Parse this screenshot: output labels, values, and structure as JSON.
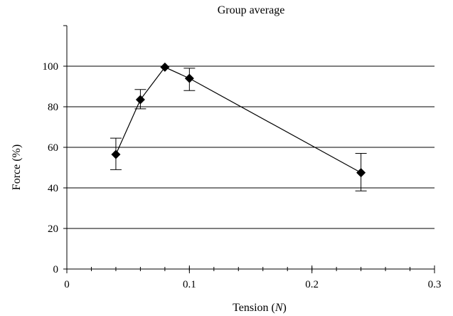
{
  "chart_data": {
    "type": "line",
    "title": "Group average",
    "xlabel_prefix": "Tension (",
    "xlabel_var": "N",
    "xlabel_suffix": ")",
    "ylabel": "Force (%)",
    "xlim": [
      0,
      0.3
    ],
    "ylim": [
      0,
      120
    ],
    "x_ticks": [
      0,
      0.1,
      0.2,
      0.3
    ],
    "x_tick_labels": [
      "0",
      "0.1",
      "0.2",
      "0.3"
    ],
    "x_minor_step": 0.02,
    "y_ticks": [
      0,
      20,
      40,
      60,
      80,
      100
    ],
    "y_tick_labels": [
      "0",
      "20",
      "40",
      "60",
      "80",
      "100"
    ],
    "grid": "horizontal",
    "series": [
      {
        "marker": "diamond",
        "color": "#000000",
        "points": [
          {
            "x": 0.04,
            "y": 56.5,
            "err_low": 49,
            "err_high": 64.5
          },
          {
            "x": 0.06,
            "y": 83.5,
            "err_low": 79,
            "err_high": 88.5
          },
          {
            "x": 0.08,
            "y": 99.5,
            "err_low": 99.5,
            "err_high": 99.5
          },
          {
            "x": 0.1,
            "y": 94,
            "err_low": 88,
            "err_high": 99
          },
          {
            "x": 0.24,
            "y": 47.5,
            "err_low": 38.5,
            "err_high": 57
          }
        ]
      }
    ]
  }
}
